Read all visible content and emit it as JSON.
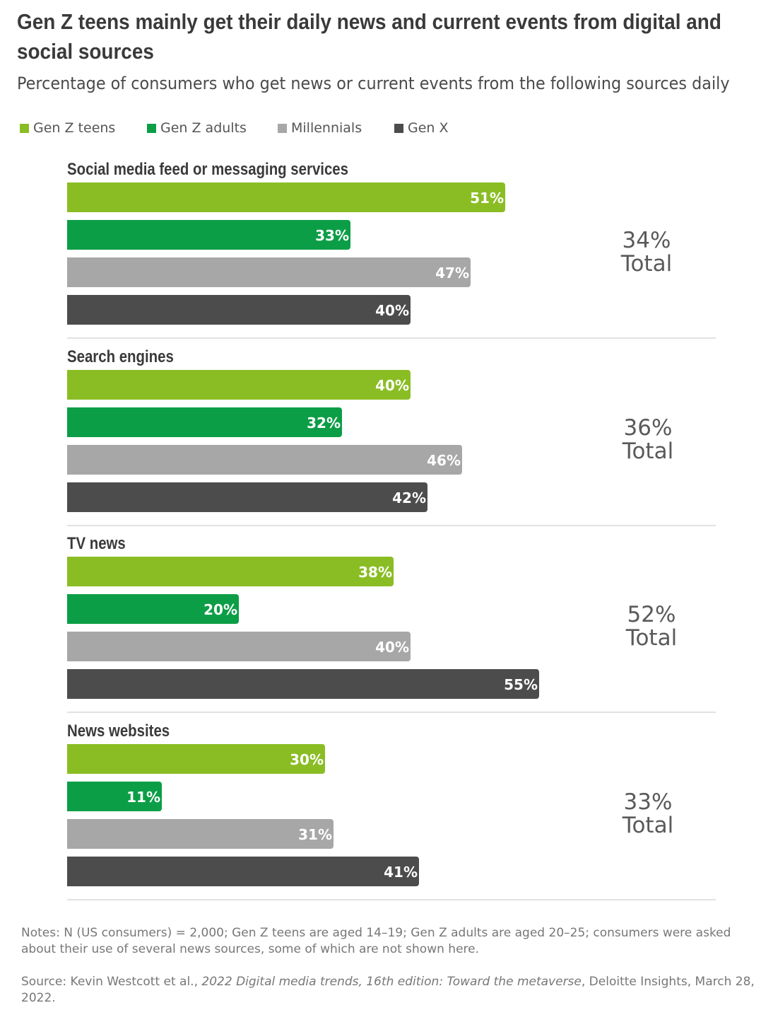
{
  "title": "Gen Z teens mainly get their daily news and current events from digital and social sources",
  "subtitle": "Percentage of consumers who get news or current events from the following sources daily",
  "colors": {
    "gen_z_teens": "#8abd24",
    "gen_z_adults": "#0c9e46",
    "millennials": "#a7a7a7",
    "gen_x": "#4c4c4c"
  },
  "legend": [
    {
      "label": "Gen Z teens",
      "color": "#8abd24"
    },
    {
      "label": "Gen Z adults",
      "color": "#0c9e46"
    },
    {
      "label": "Millennials",
      "color": "#a7a7a7"
    },
    {
      "label": "Gen X",
      "color": "#4c4c4c"
    }
  ],
  "chart_data": {
    "type": "bar",
    "orientation": "horizontal",
    "series_names": [
      "Gen Z teens",
      "Gen Z adults",
      "Millennials",
      "Gen X"
    ],
    "xlim": [
      0,
      100
    ],
    "groups": [
      {
        "category": "Social media feed or messaging services",
        "values": [
          51,
          33,
          47,
          40
        ],
        "labels": [
          "51%",
          "33%",
          "47%",
          "40%"
        ],
        "total": "34%",
        "total_label": "Total"
      },
      {
        "category": "Search engines",
        "values": [
          40,
          32,
          46,
          42
        ],
        "labels": [
          "40%",
          "32%",
          "46%",
          "42%"
        ],
        "total": "36%",
        "total_label": "Total"
      },
      {
        "category": "TV news",
        "values": [
          38,
          20,
          40,
          55
        ],
        "labels": [
          "38%",
          "20%",
          "40%",
          "55%"
        ],
        "total": "52%",
        "total_label": "Total"
      },
      {
        "category": "News websites",
        "values": [
          30,
          11,
          31,
          41
        ],
        "labels": [
          "30%",
          "11%",
          "31%",
          "41%"
        ],
        "total": "33%",
        "total_label": "Total"
      }
    ],
    "legend_position": "top-left"
  },
  "notes": "Notes: N (US consumers) = 2,000; Gen Z teens are aged 14–19; Gen Z adults are aged 20–25; consumers were asked about their use of several news sources, some of which are not shown here.",
  "source": {
    "prefix": "Source: Kevin Westcott et al., ",
    "title": "2022 Digital media trends, 16th edition: Toward the metaverse",
    "suffix": ", Deloitte Insights, March 28, 2022."
  }
}
